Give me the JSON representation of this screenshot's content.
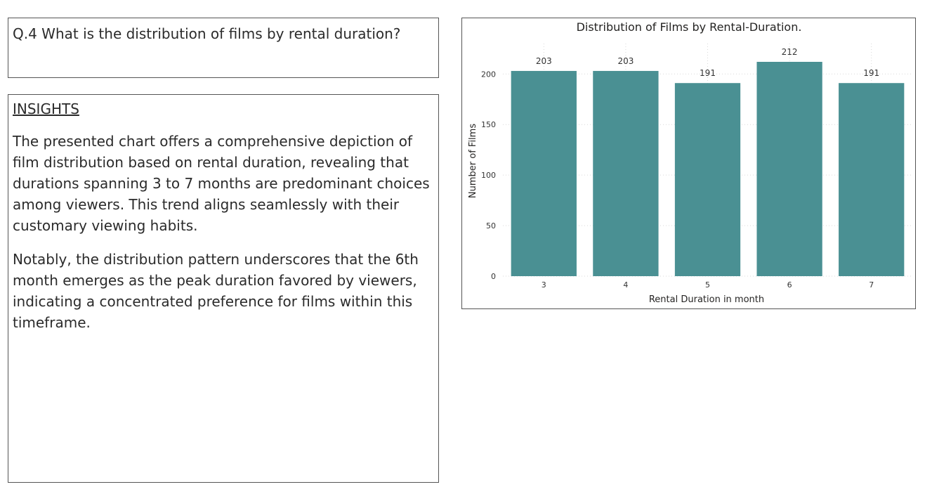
{
  "question": {
    "text": "Q.4 What is the distribution of films by rental duration?"
  },
  "insights": {
    "heading": "INSIGHTS",
    "paragraph_1": "The presented chart offers a comprehensive depiction of film distribution based on rental duration, revealing that durations spanning 3 to 7 months are predominant choices among viewers. This trend aligns seamlessly with their customary viewing habits.",
    "paragraph_2": "Notably, the distribution pattern underscores that the 6th month emerges as the peak duration favored by viewers, indicating a concentrated preference for films within this timeframe."
  },
  "chart_data": {
    "type": "bar",
    "title": "Distribution of Films by Rental-Duration.",
    "xlabel": "Rental Duration in month",
    "ylabel": "Number of Films",
    "categories": [
      "3",
      "4",
      "5",
      "6",
      "7"
    ],
    "values": [
      203,
      203,
      191,
      212,
      191
    ],
    "ylim": [
      0,
      212
    ],
    "yticks": [
      0,
      50,
      100,
      150,
      200
    ],
    "grid": true,
    "data_labels": true,
    "bar_color": "#4a9093"
  }
}
